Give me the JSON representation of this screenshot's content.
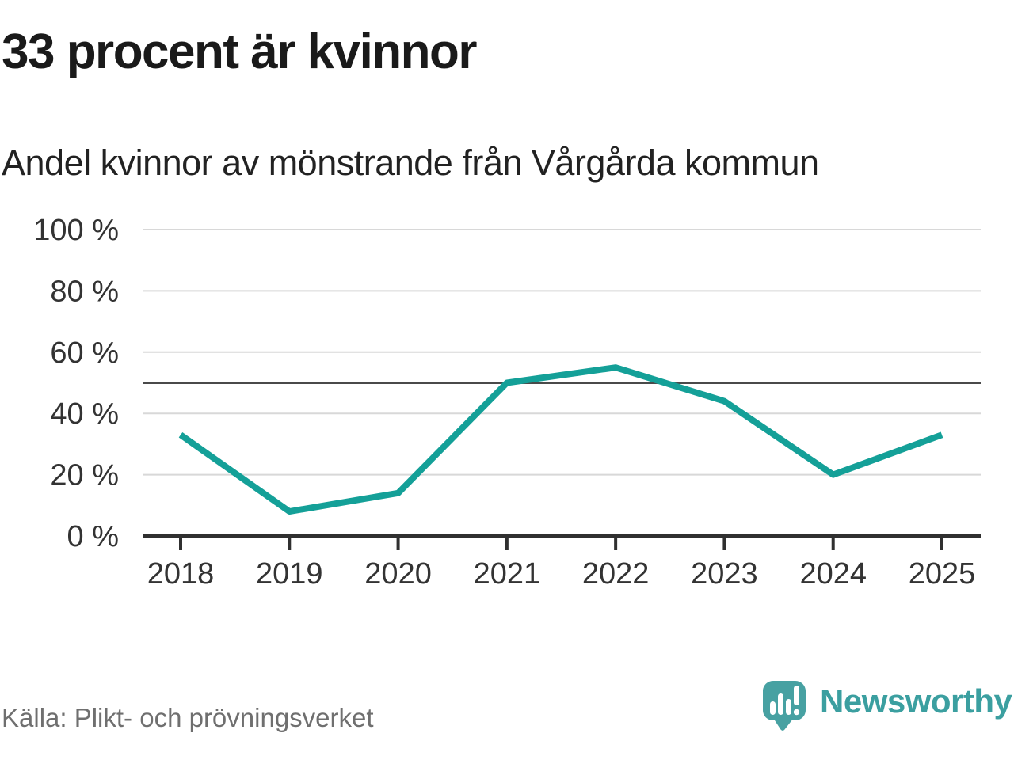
{
  "header": {
    "title": "33 procent är kvinnor",
    "subtitle": "Andel kvinnor av mönstrande från Vårgårda kommun"
  },
  "chart_data": {
    "type": "line",
    "title": "33 procent är kvinnor",
    "subtitle": "Andel kvinnor av mönstrande från Vårgårda kommun",
    "categories": [
      "2018",
      "2019",
      "2020",
      "2021",
      "2022",
      "2023",
      "2024",
      "2025"
    ],
    "series": [
      {
        "name": "Andel kvinnor av mönstrande",
        "values": [
          33,
          8,
          14,
          50,
          55,
          44,
          20,
          33
        ]
      }
    ],
    "xlabel": "",
    "ylabel": "",
    "ylim": [
      0,
      100
    ],
    "yticks": [
      0,
      20,
      40,
      60,
      80,
      100
    ],
    "ytick_suffix": " %",
    "reference_line": 50,
    "grid": true,
    "legend": "none"
  },
  "footer": {
    "source": "Källa: Plikt- och prövningsverket",
    "brand": "Newsworthy"
  },
  "colors": {
    "line": "#14a098",
    "grid_line": "#d8d8d8",
    "reference_line": "#4a4a4a",
    "axis_line": "#303030",
    "axis_text": "#333333",
    "title_text": "#1a1a1a",
    "source_text": "#6f6f6f",
    "brand_teal": "#47a1a2",
    "background": "#ffffff"
  }
}
